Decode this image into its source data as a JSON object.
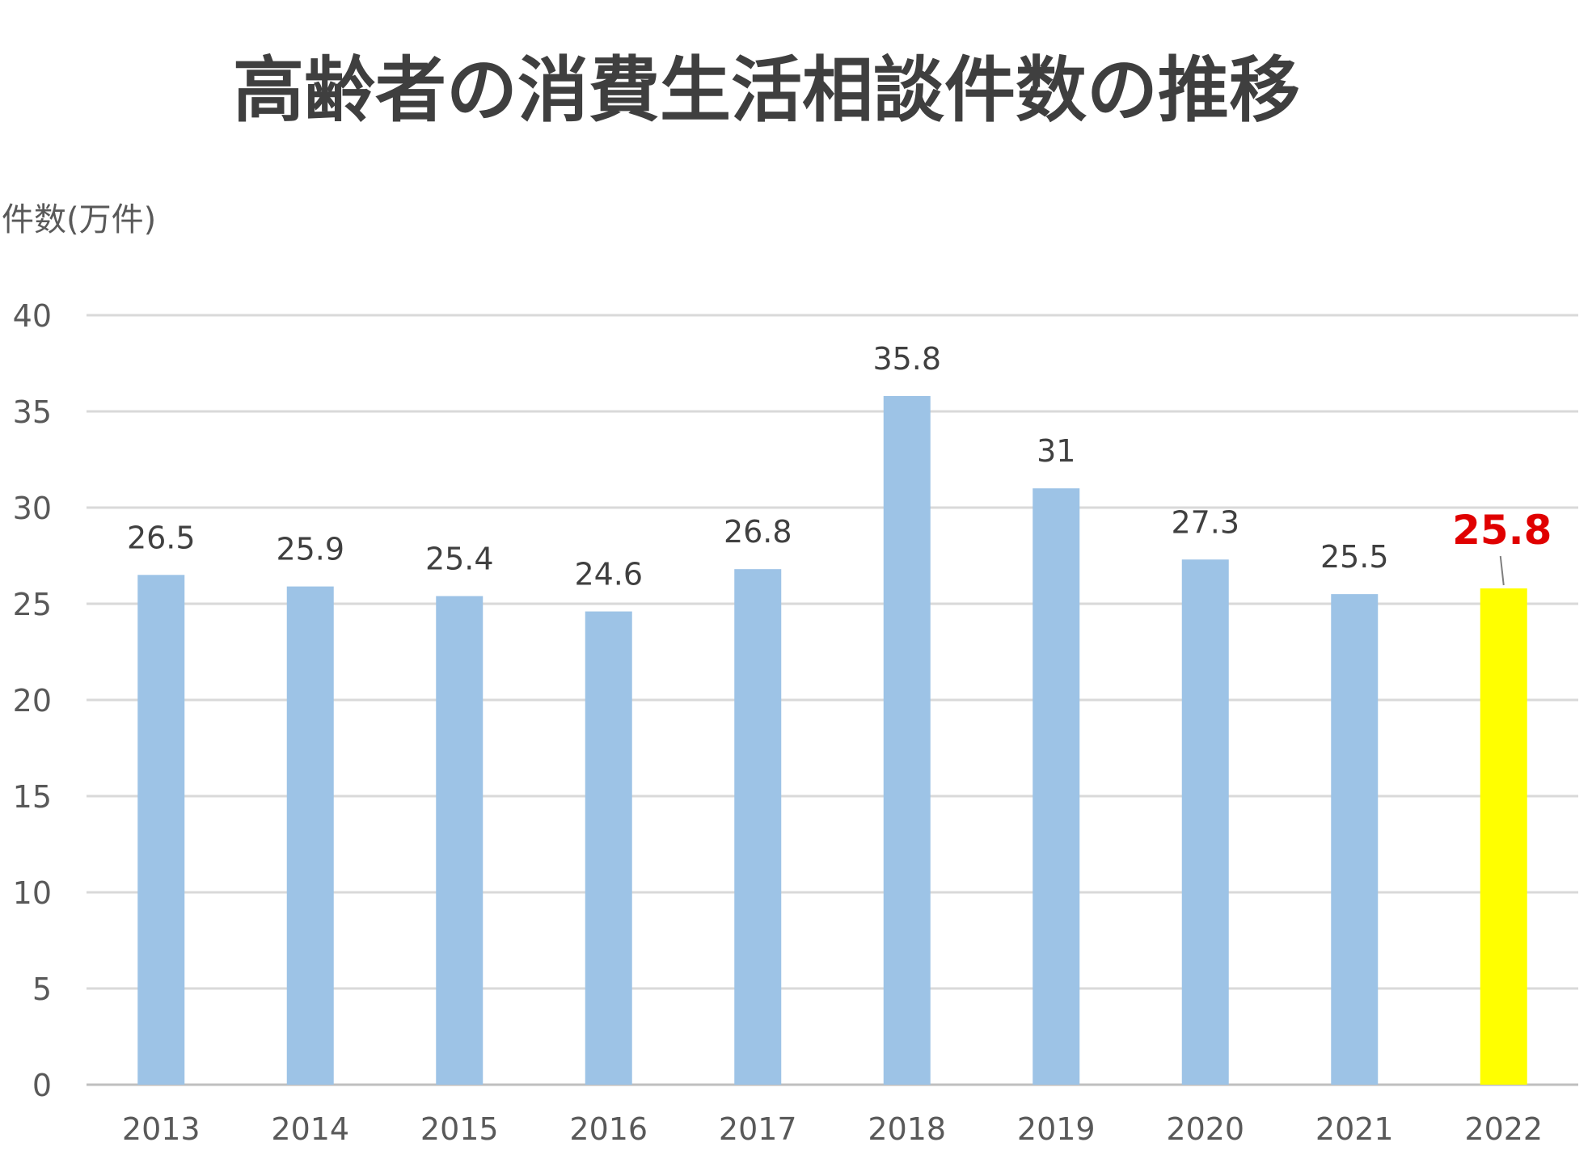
{
  "chart_data": {
    "type": "bar",
    "title": "高齢者の消費生活相談件数の推移",
    "ylabel": "件数(万件)",
    "xlabel": "",
    "categories": [
      "2013",
      "2014",
      "2015",
      "2016",
      "2017",
      "2018",
      "2019",
      "2020",
      "2021",
      "2022"
    ],
    "values": [
      26.5,
      25.9,
      25.4,
      24.6,
      26.8,
      35.8,
      31,
      27.3,
      25.5,
      25.8
    ],
    "value_labels": [
      "26.5",
      "25.9",
      "25.4",
      "24.6",
      "26.8",
      "35.8",
      "31",
      "27.3",
      "25.5",
      "25.8"
    ],
    "ylim": [
      0,
      40
    ],
    "yticks": [
      "0",
      "5",
      "10",
      "15",
      "20",
      "25",
      "30",
      "35",
      "40"
    ],
    "grid": true,
    "legend": "none",
    "colors": {
      "bar": "#9dc3e6",
      "highlight_bar": "#ffff00",
      "highlight_label": "#e00000",
      "grid": "#d9d9d9",
      "axis": "#bfbfbf"
    },
    "highlight_category": "2022"
  }
}
